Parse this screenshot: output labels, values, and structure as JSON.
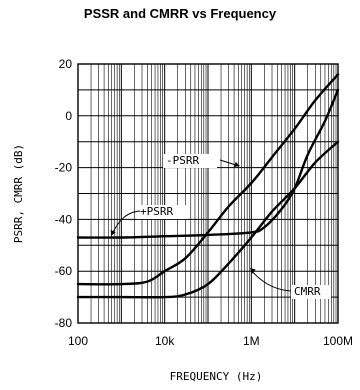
{
  "chart_data": {
    "type": "line",
    "title": "PSSR and CMRR vs Frequency",
    "xlabel": "FREQUENCY (Hz)",
    "ylabel": "PSRR, CMRR (dB)",
    "xscale": "log",
    "xlim": [
      100,
      100000000
    ],
    "ylim": [
      -80,
      20
    ],
    "xticks": [
      100,
      10000,
      1000000,
      100000000
    ],
    "xtick_labels": [
      "100",
      "10k",
      "1M",
      "100M"
    ],
    "yticks": [
      -80,
      -60,
      -40,
      -20,
      0,
      20
    ],
    "ytick_labels": [
      "-80",
      "-60",
      "-40",
      "-20",
      "0",
      "20"
    ],
    "grid": true,
    "series": [
      {
        "name": "-PSRR",
        "x": [
          100,
          1000,
          4000,
          10000,
          30000,
          100000,
          300000,
          1000000,
          3000000,
          10000000,
          30000000,
          100000000
        ],
        "y": [
          -65,
          -65,
          -64,
          -60,
          -55,
          -45,
          -35,
          -26,
          -16,
          -5,
          6,
          16
        ]
      },
      {
        "name": "+PSRR",
        "x": [
          100,
          1000,
          10000,
          100000,
          1000000,
          2000000,
          5000000,
          10000000,
          20000000,
          50000000,
          100000000
        ],
        "y": [
          -47,
          -47,
          -46.5,
          -46,
          -45,
          -43,
          -36,
          -28,
          -15,
          -2,
          10
        ]
      },
      {
        "name": "CMRR",
        "x": [
          100,
          1000,
          10000,
          30000,
          100000,
          300000,
          1000000,
          3000000,
          10000000,
          30000000,
          100000000
        ],
        "y": [
          -70,
          -70,
          -70,
          -69,
          -65,
          -57,
          -47,
          -37,
          -28,
          -18,
          -10
        ]
      }
    ],
    "annotations": [
      {
        "text": "-PSRR",
        "series": "-PSRR"
      },
      {
        "text": "+PSRR",
        "series": "+PSRR"
      },
      {
        "text": "CMRR",
        "series": "CMRR"
      }
    ]
  }
}
